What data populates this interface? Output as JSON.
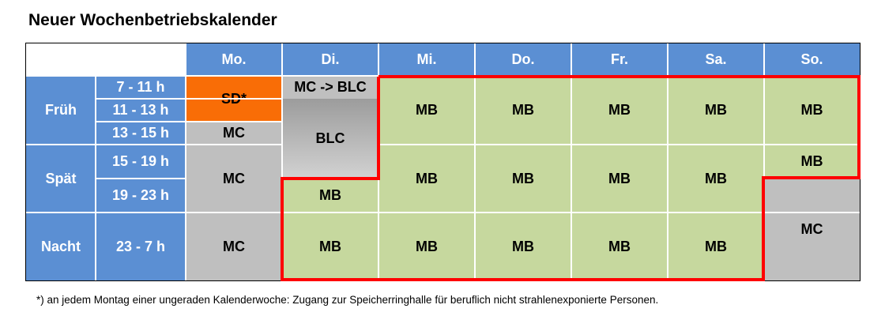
{
  "title": "Neuer Wochenbetriebskalender",
  "days": [
    "Mo.",
    "Di.",
    "Mi.",
    "Do.",
    "Fr.",
    "Sa.",
    "So."
  ],
  "shifts": [
    "Früh",
    "Spät",
    "Nacht"
  ],
  "time_slots": [
    "7 - 11 h",
    "11 - 13 h",
    "13 - 15 h",
    "15 - 19 h",
    "19 - 23 h",
    "23 - 7 h"
  ],
  "cells": {
    "mo_sd": "SD*",
    "mo_mc_13": "MC",
    "mo_mc_spaet": "MC",
    "mo_mc_nacht": "MC",
    "di_mc_blc": "MC -> BLC",
    "di_blc": "BLC",
    "di_mb_19": "MB",
    "di_mb_nacht": "MB",
    "mi_mb_frueh": "MB",
    "mi_mb_spaet": "MB",
    "mi_mb_nacht": "MB",
    "do_mb_frueh": "MB",
    "do_mb_spaet": "MB",
    "do_mb_nacht": "MB",
    "fr_mb_frueh": "MB",
    "fr_mb_spaet": "MB",
    "fr_mb_nacht": "MB",
    "sa_mb_frueh": "MB",
    "sa_mb_spaet": "MB",
    "sa_mb_nacht": "MB",
    "so_mb_frueh": "MB",
    "so_mb_15": "MB",
    "so_mc": "MC"
  },
  "colors": {
    "header_blue": "#5b8fd3",
    "mb_green": "#c6d89e",
    "mc_gray": "#bfbfbf",
    "sd_orange": "#f96d06",
    "outline_red": "#ff0000"
  },
  "footnote": "*) an jedem Montag einer ungeraden Kalenderwoche: Zugang zur Speicherringhalle für beruflich nicht strahlenexponierte Personen."
}
